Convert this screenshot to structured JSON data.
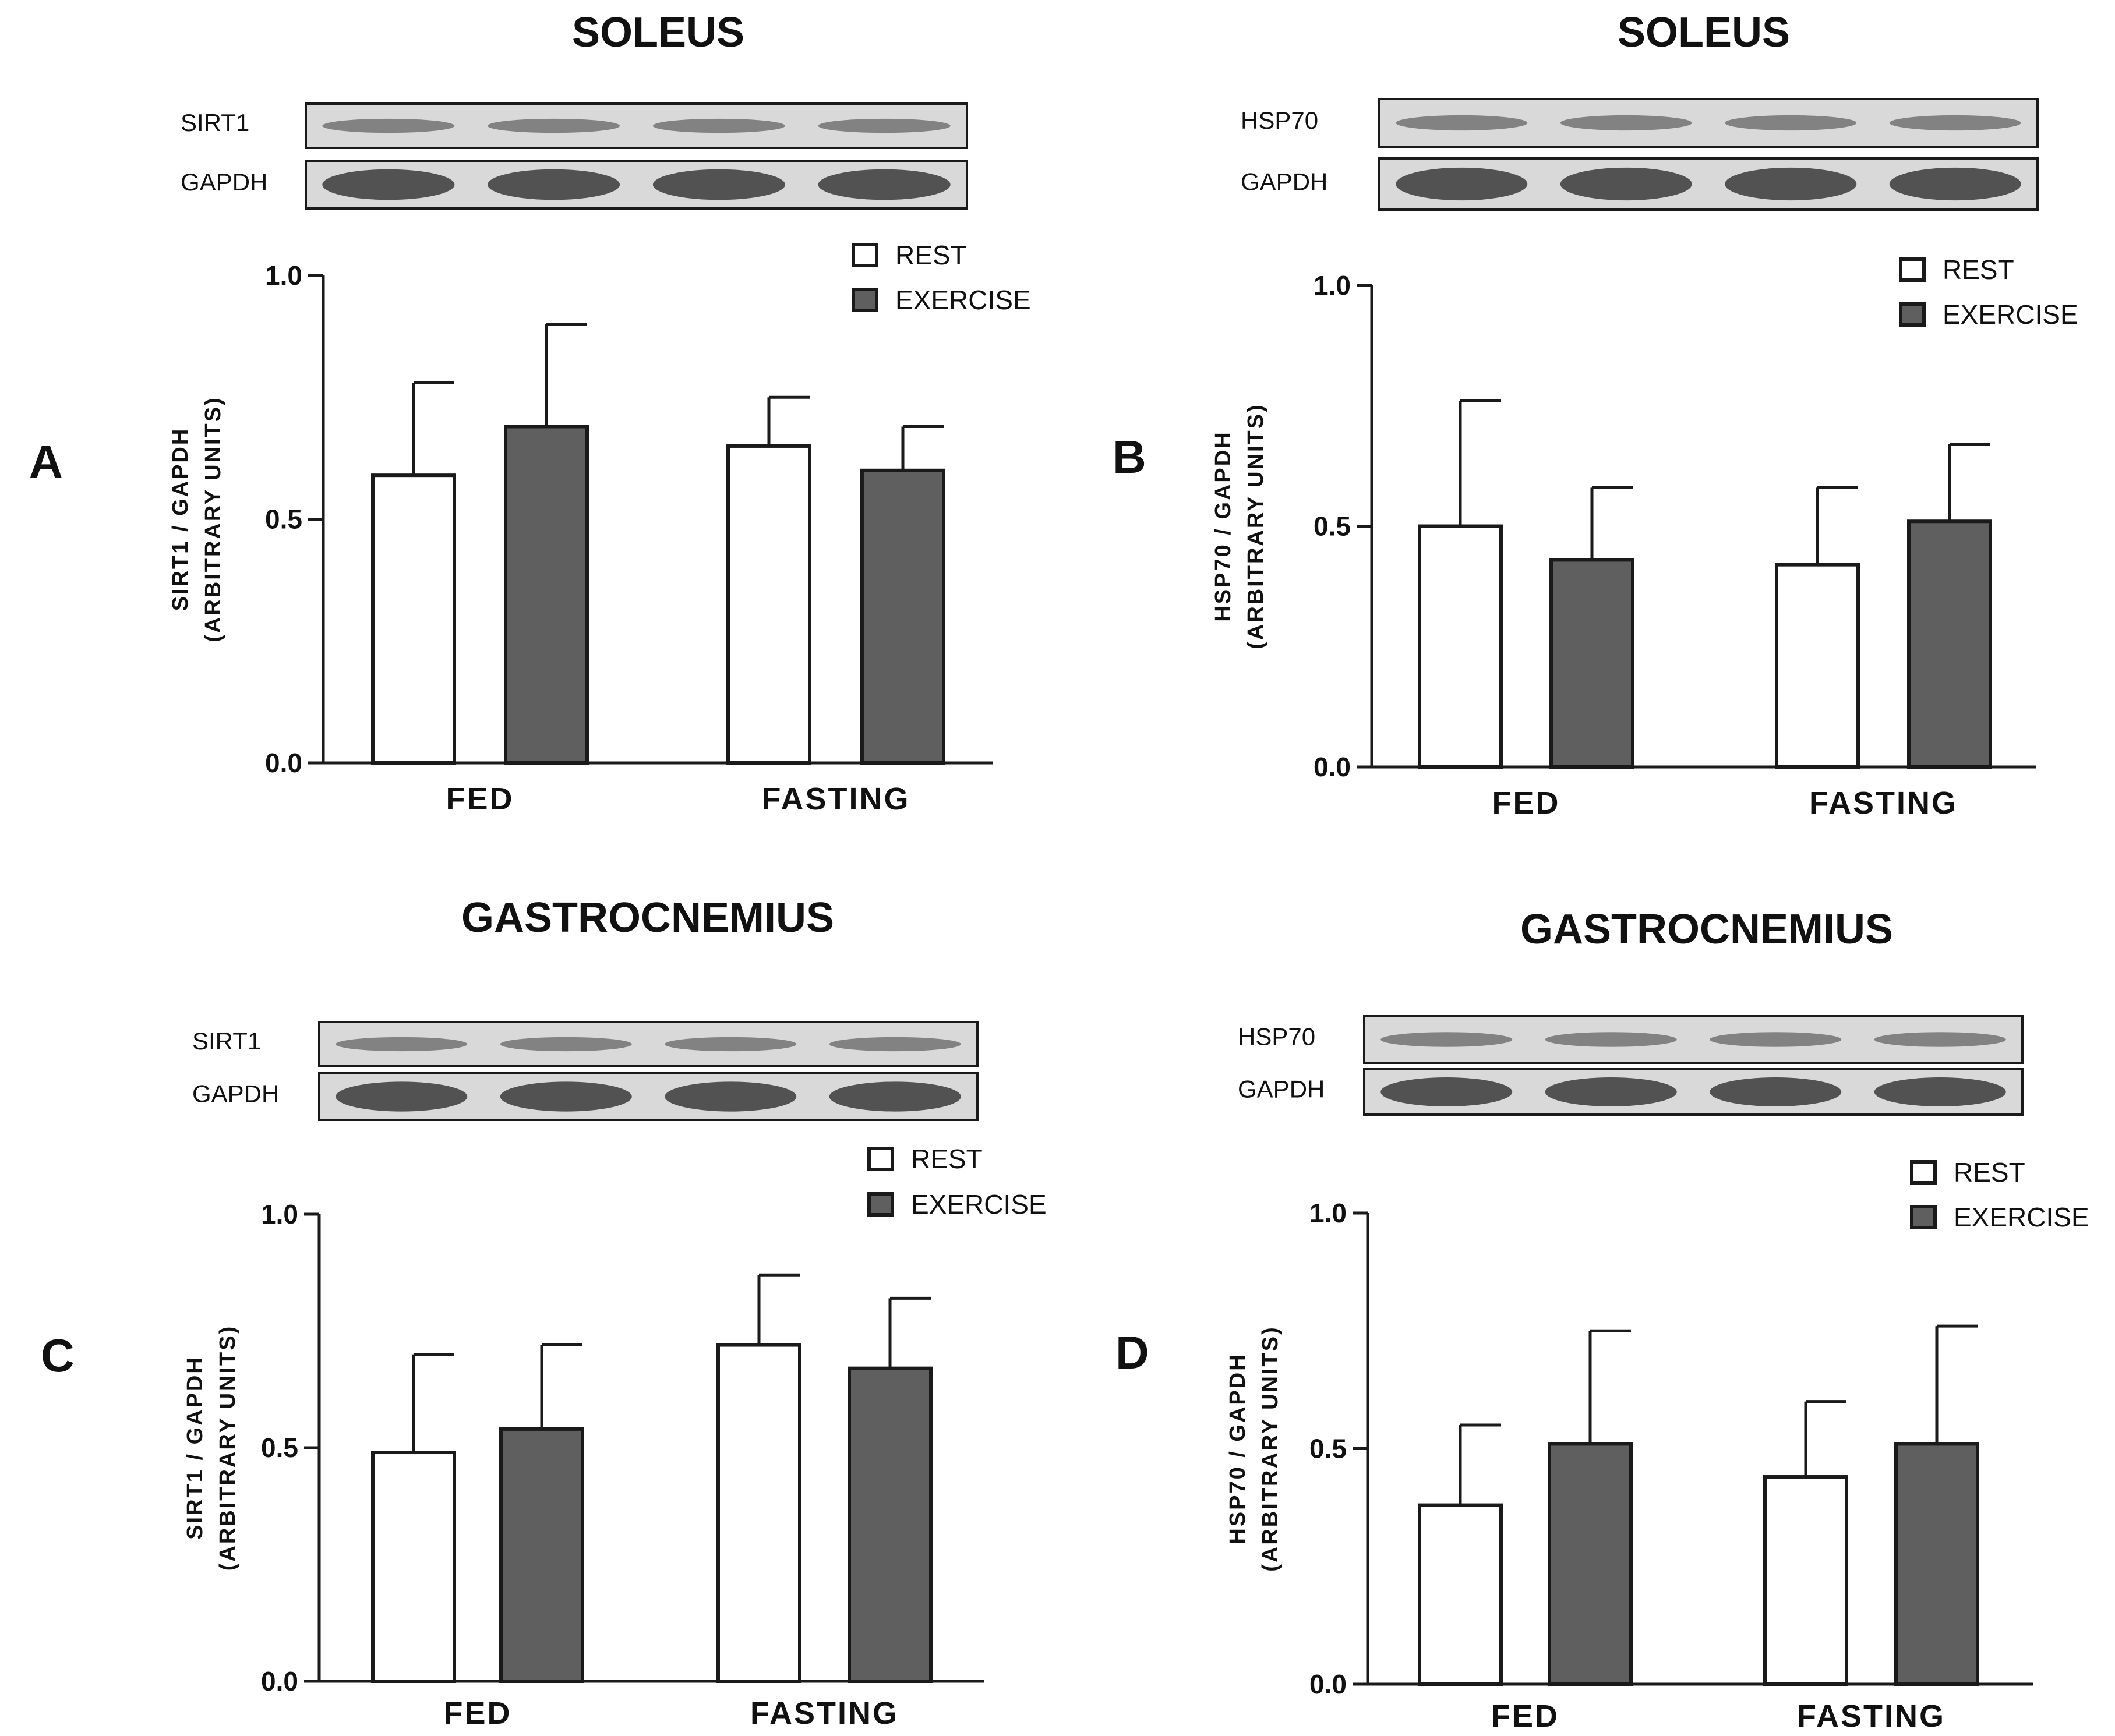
{
  "chart_data": [
    {
      "type": "bar",
      "panel": "A",
      "title": "SOLEUS",
      "blot_labels": [
        "SIRT1",
        "GAPDH"
      ],
      "categories": [
        "FED",
        "FASTING"
      ],
      "series": [
        {
          "name": "REST",
          "values": [
            0.59,
            0.65
          ],
          "errors": [
            0.19,
            0.1
          ]
        },
        {
          "name": "EXERCISE",
          "values": [
            0.69,
            0.6
          ],
          "errors": [
            0.21,
            0.09
          ]
        }
      ],
      "ylabel": [
        "SIRT1 / GAPDH",
        "(ARBITRARY UNITS)"
      ],
      "yticks": [
        "0.0",
        "0.5",
        "1.0"
      ],
      "ylim": [
        0,
        1.0
      ]
    },
    {
      "type": "bar",
      "panel": "B",
      "title": "SOLEUS",
      "blot_labels": [
        "HSP70",
        "GAPDH"
      ],
      "categories": [
        "FED",
        "FASTING"
      ],
      "series": [
        {
          "name": "REST",
          "values": [
            0.5,
            0.42
          ],
          "errors": [
            0.26,
            0.16
          ]
        },
        {
          "name": "EXERCISE",
          "values": [
            0.43,
            0.51
          ],
          "errors": [
            0.15,
            0.16
          ]
        }
      ],
      "ylabel": [
        "HSP70 / GAPDH",
        "(ARBITRARY UNITS)"
      ],
      "yticks": [
        "0.0",
        "0.5",
        "1.0"
      ],
      "ylim": [
        0,
        1.0
      ]
    },
    {
      "type": "bar",
      "panel": "C",
      "title": "GASTROCNEMIUS",
      "blot_labels": [
        "SIRT1",
        "GAPDH"
      ],
      "categories": [
        "FED",
        "FASTING"
      ],
      "series": [
        {
          "name": "REST",
          "values": [
            0.49,
            0.72
          ],
          "errors": [
            0.21,
            0.15
          ]
        },
        {
          "name": "EXERCISE",
          "values": [
            0.54,
            0.67
          ],
          "errors": [
            0.18,
            0.15
          ]
        }
      ],
      "ylabel": [
        "SIRT1 / GAPDH",
        "(ARBITRARY UNITS)"
      ],
      "yticks": [
        "0.0",
        "0.5",
        "1.0"
      ],
      "ylim": [
        0,
        1.0
      ]
    },
    {
      "type": "bar",
      "panel": "D",
      "title": "GASTROCNEMIUS",
      "blot_labels": [
        "HSP70",
        "GAPDH"
      ],
      "categories": [
        "FED",
        "FASTING"
      ],
      "series": [
        {
          "name": "REST",
          "values": [
            0.38,
            0.44
          ],
          "errors": [
            0.17,
            0.16
          ]
        },
        {
          "name": "EXERCISE",
          "values": [
            0.51,
            0.51
          ],
          "errors": [
            0.24,
            0.25
          ]
        }
      ],
      "ylabel": [
        "HSP70 / GAPDH",
        "(ARBITRARY UNITS)"
      ],
      "yticks": [
        "0.0",
        "0.5",
        "1.0"
      ],
      "ylim": [
        0,
        1.0
      ]
    }
  ],
  "colors": {
    "rest_fill": "#ffffff",
    "exercise_fill": "#5f5f5f",
    "stroke": "#1a1a1a",
    "blot_bg": "#d9d9d9",
    "band": "#3a3a3a"
  }
}
